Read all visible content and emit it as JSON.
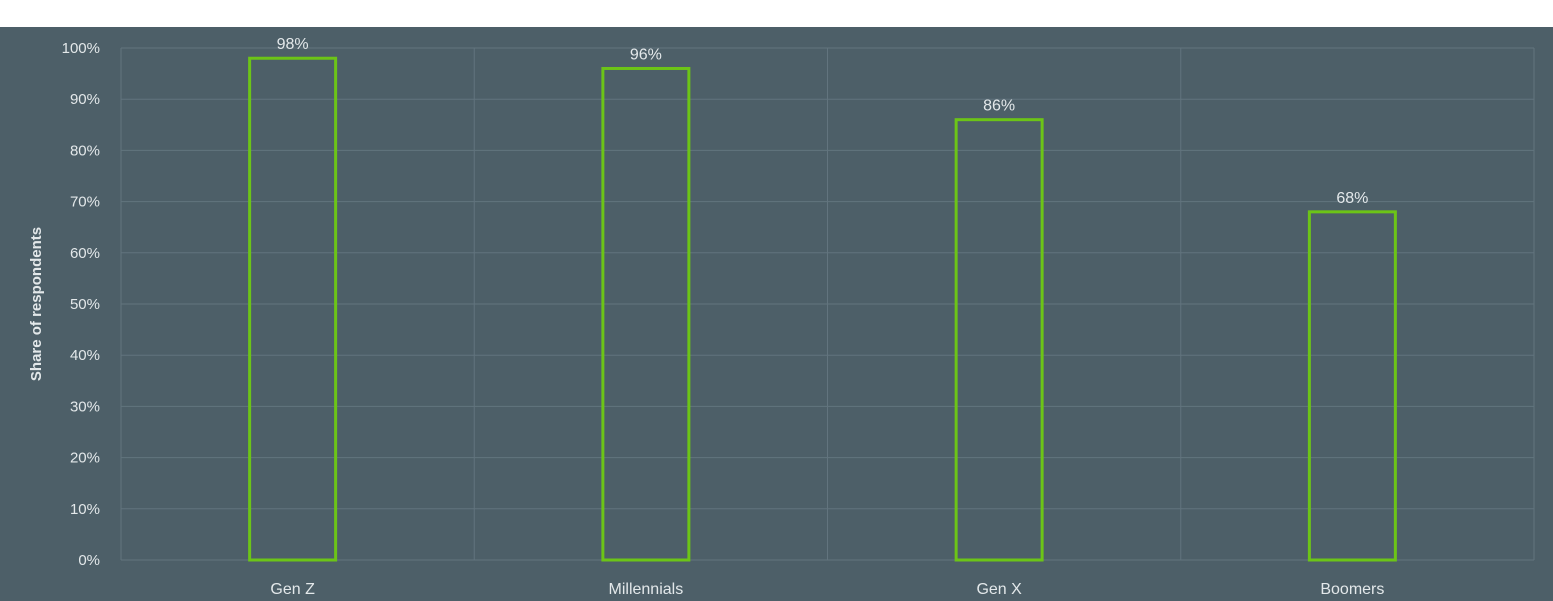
{
  "chart_data": {
    "type": "bar",
    "categories": [
      "Gen Z",
      "Millennials",
      "Gen X",
      "Boomers"
    ],
    "values": [
      98,
      96,
      86,
      68
    ],
    "value_labels": [
      "98%",
      "96%",
      "86%",
      "68%"
    ],
    "title": "",
    "xlabel": "",
    "ylabel": "Share of respondents",
    "ylim": [
      0,
      100
    ],
    "yticks": [
      "0%",
      "10%",
      "20%",
      "30%",
      "40%",
      "50%",
      "60%",
      "70%",
      "80%",
      "90%",
      "100%"
    ],
    "grid": true,
    "colors": {
      "background": "#4d5f68",
      "bar_outline": "#6cc417",
      "grid": "#62747e",
      "text": "#e3e8ea"
    }
  }
}
